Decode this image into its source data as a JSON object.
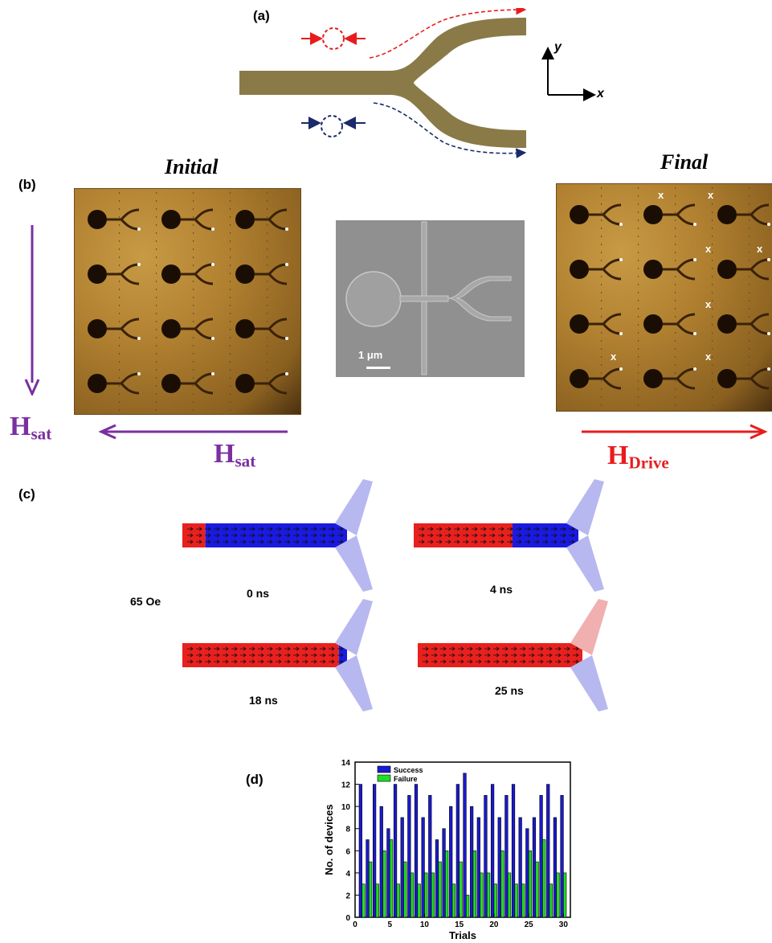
{
  "panel_a": {
    "label": "(a)",
    "axis_y": "y",
    "axis_x": "x"
  },
  "panel_b": {
    "label": "(b)",
    "initial_title": "Initial",
    "final_title": "Final",
    "scale_bar": "1 μm",
    "h_sat_main": "H",
    "h_sat_sub": "sat",
    "h_drive_main": "H",
    "h_drive_sub": "Drive",
    "x_mark": "x",
    "colors": {
      "purple": "#7b2fa0",
      "red": "#e81c1c"
    }
  },
  "panel_c": {
    "label": "(c)",
    "field": "65 Oe",
    "times": [
      "0 ns",
      "4 ns",
      "18 ns",
      "25 ns"
    ],
    "domain_fraction_red": [
      0.14,
      0.6,
      0.95,
      1.0
    ],
    "colors": {
      "red": "#e8201e",
      "blue": "#1a1ae0",
      "light_blue": "#b8b8f0"
    }
  },
  "panel_d": {
    "label": "(d)",
    "chart_data": {
      "type": "bar",
      "xlabel": "Trials",
      "ylabel": "No. of devices",
      "xlim": [
        0,
        31
      ],
      "ylim": [
        0,
        14
      ],
      "x_ticks": [
        0,
        5,
        10,
        15,
        20,
        25,
        30
      ],
      "y_ticks": [
        0,
        2,
        4,
        6,
        8,
        10,
        12,
        14
      ],
      "grid": false,
      "legend_position": "top-left",
      "x": [
        1,
        2,
        3,
        4,
        5,
        6,
        7,
        8,
        9,
        10,
        11,
        12,
        13,
        14,
        15,
        16,
        17,
        18,
        19,
        20,
        21,
        22,
        23,
        24,
        25,
        26,
        27,
        28,
        29,
        30
      ],
      "series": [
        {
          "name": "Success",
          "color": "#1a1ad0",
          "values": [
            12,
            7,
            12,
            10,
            8,
            12,
            9,
            11,
            12,
            9,
            11,
            7,
            8,
            10,
            12,
            13,
            10,
            9,
            11,
            12,
            9,
            11,
            12,
            9,
            8,
            9,
            11,
            12,
            9,
            11
          ]
        },
        {
          "name": "Failure",
          "color": "#22dd22",
          "values": [
            3,
            5,
            3,
            6,
            7,
            3,
            5,
            4,
            3,
            4,
            4,
            5,
            6,
            3,
            5,
            2,
            6,
            4,
            4,
            3,
            6,
            4,
            3,
            3,
            6,
            5,
            7,
            3,
            4,
            4
          ]
        }
      ]
    }
  }
}
